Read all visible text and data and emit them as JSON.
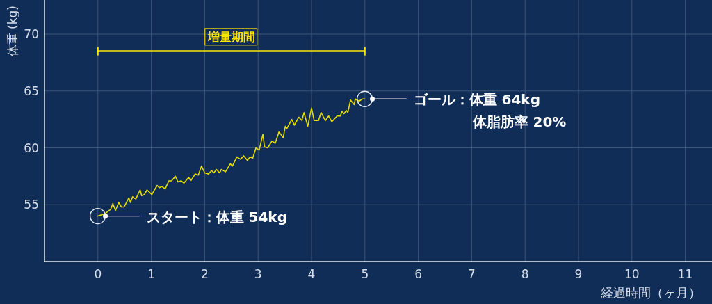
{
  "chart_data": {
    "type": "line",
    "xlabel": "経過時間（ヶ月）",
    "ylabel": "体重 (kg)",
    "xlim": [
      -1,
      11.5
    ],
    "xticks": [
      0,
      1,
      2,
      3,
      4,
      5,
      6,
      7,
      8,
      9,
      10,
      11
    ],
    "ylim": [
      50,
      73
    ],
    "yticks": [
      55,
      60,
      65,
      70
    ],
    "grid": true,
    "marker": "none",
    "x": [
      0.0,
      0.13,
      0.24,
      0.28,
      0.33,
      0.39,
      0.44,
      0.49,
      0.58,
      0.61,
      0.65,
      0.71,
      0.79,
      0.82,
      0.87,
      0.92,
      1.01,
      1.11,
      1.15,
      1.2,
      1.26,
      1.33,
      1.38,
      1.45,
      1.5,
      1.56,
      1.61,
      1.7,
      1.74,
      1.82,
      1.88,
      1.94,
      2.0,
      2.07,
      2.13,
      2.17,
      2.22,
      2.28,
      2.31,
      2.39,
      2.48,
      2.52,
      2.6,
      2.67,
      2.73,
      2.8,
      2.85,
      2.9,
      2.96,
      3.02,
      3.09,
      3.12,
      3.18,
      3.26,
      3.32,
      3.39,
      3.47,
      3.51,
      3.54,
      3.63,
      3.68,
      3.76,
      3.82,
      3.86,
      3.93,
      4.0,
      4.05,
      4.13,
      4.18,
      4.26,
      4.32,
      4.38,
      4.48,
      4.54,
      4.57,
      4.61,
      4.65,
      4.68,
      4.73,
      4.8,
      4.82,
      4.89,
      4.95,
      5.0
    ],
    "series": [
      {
        "color": "#e6dc00",
        "values": [
          54.0,
          54.2,
          54.6,
          55.1,
          54.5,
          55.2,
          54.8,
          54.8,
          55.6,
          55.2,
          55.7,
          55.5,
          56.3,
          55.8,
          55.9,
          56.3,
          55.9,
          56.7,
          56.5,
          56.6,
          56.4,
          57.1,
          57.1,
          57.5,
          57.0,
          57.1,
          56.9,
          57.4,
          57.1,
          57.7,
          57.6,
          58.4,
          57.8,
          57.7,
          58.0,
          57.8,
          58.1,
          57.8,
          58.1,
          57.9,
          58.6,
          58.4,
          59.2,
          59.0,
          59.3,
          58.9,
          59.2,
          59.1,
          60.0,
          59.8,
          61.2,
          60.1,
          60.0,
          60.6,
          60.4,
          61.4,
          60.9,
          61.9,
          61.7,
          62.5,
          62.0,
          62.7,
          62.4,
          63.1,
          61.9,
          63.5,
          62.4,
          62.4,
          63.1,
          62.4,
          62.8,
          62.3,
          62.8,
          62.8,
          63.2,
          63.0,
          63.3,
          63.1,
          64.2,
          63.8,
          64.3,
          64.1,
          64.3,
          64.3
        ]
      }
    ],
    "annotations": [
      "増量期間",
      {
        "text": "スタート：体重 54kg",
        "x": 0.14,
        "y": 54
      },
      {
        "text": "ゴール：体重 64kg",
        "x": 5.14,
        "y": 64.3
      },
      "体脂肪率 20%"
    ]
  }
}
